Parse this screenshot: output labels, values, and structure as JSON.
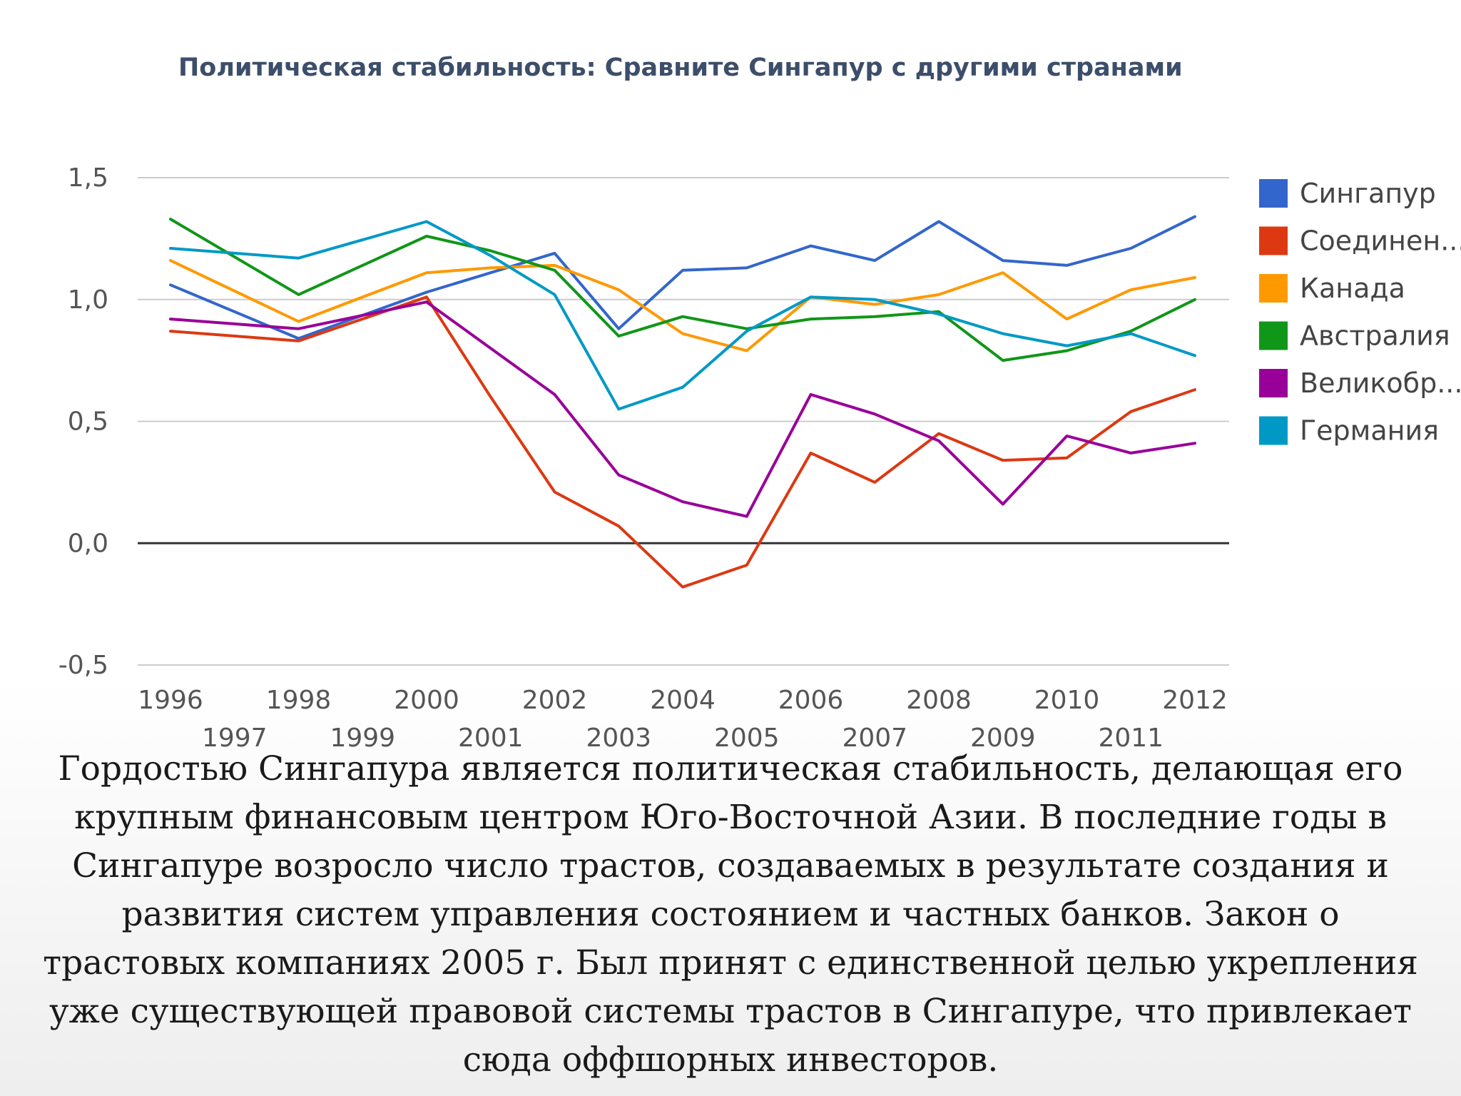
{
  "chart_data": {
    "type": "line",
    "title": "Политическая стабильность: Сравните Сингапур с другими странами",
    "x": [
      1996,
      1997,
      1998,
      1999,
      2000,
      2001,
      2002,
      2003,
      2004,
      2005,
      2006,
      2007,
      2008,
      2009,
      2010,
      2011,
      2012
    ],
    "x_tick_labels_top": [
      "1996",
      "1998",
      "2000",
      "2002",
      "2004",
      "2006",
      "2008",
      "2010",
      "2012"
    ],
    "x_tick_labels_bottom": [
      "1997",
      "1999",
      "2001",
      "2003",
      "2005",
      "2007",
      "2009",
      "2011"
    ],
    "ylim": [
      -0.5,
      1.5
    ],
    "y_ticks": [
      {
        "value": 1.5,
        "label": "1,5"
      },
      {
        "value": 1.0,
        "label": "1,0"
      },
      {
        "value": 0.5,
        "label": "0,5"
      },
      {
        "value": 0.0,
        "label": "0,0"
      },
      {
        "value": -0.5,
        "label": "-0,5"
      }
    ],
    "grid": true,
    "legend": "right",
    "series": [
      {
        "name": "Сингапур",
        "color": "#3366cc",
        "values": [
          1.06,
          null,
          0.84,
          null,
          1.03,
          1.11,
          1.19,
          0.88,
          1.12,
          1.13,
          1.22,
          1.16,
          1.32,
          1.16,
          1.14,
          1.21,
          1.34
        ]
      },
      {
        "name": "Соединен...",
        "color": "#dc3912",
        "values": [
          0.87,
          null,
          0.83,
          null,
          1.01,
          0.6,
          0.21,
          0.07,
          -0.18,
          -0.09,
          0.37,
          0.25,
          0.45,
          0.34,
          0.35,
          0.54,
          0.63
        ]
      },
      {
        "name": "Канада",
        "color": "#ff9900",
        "values": [
          1.16,
          null,
          0.91,
          null,
          1.11,
          1.13,
          1.14,
          1.04,
          0.86,
          0.79,
          1.01,
          0.98,
          1.02,
          1.11,
          0.92,
          1.04,
          1.09
        ]
      },
      {
        "name": "Австралия",
        "color": "#109618",
        "values": [
          1.33,
          null,
          1.02,
          null,
          1.26,
          1.2,
          1.12,
          0.85,
          0.93,
          0.88,
          0.92,
          0.93,
          0.95,
          0.75,
          0.79,
          0.87,
          1.0
        ]
      },
      {
        "name": "Великобр...",
        "color": "#990099",
        "values": [
          0.92,
          null,
          0.88,
          null,
          0.99,
          0.8,
          0.61,
          0.28,
          0.17,
          0.11,
          0.61,
          0.53,
          0.42,
          0.16,
          0.44,
          0.37,
          0.41
        ]
      },
      {
        "name": "Германия",
        "color": "#0099c6",
        "values": [
          1.21,
          null,
          1.17,
          null,
          1.32,
          1.18,
          1.02,
          0.55,
          0.64,
          0.87,
          1.01,
          1.0,
          0.94,
          0.86,
          0.81,
          0.86,
          0.77
        ]
      }
    ]
  },
  "caption": {
    "lines": [
      "Гордостью Сингапура является политическая стабильность, делающая его",
      "крупным финансовым центром Юго-Восточной Азии. В последние годы в",
      "Сингапуре возросло число трастов, создаваемых в результате создания и",
      "развития систем управления состоянием и частных банков. Закон о",
      "трастовых компаниях 2005 г. Был принят с единственной целью укрепления",
      "уже существующей правовой системы трастов в Сингапуре, что привлекает",
      "сюда оффшорных инвесторов."
    ]
  }
}
